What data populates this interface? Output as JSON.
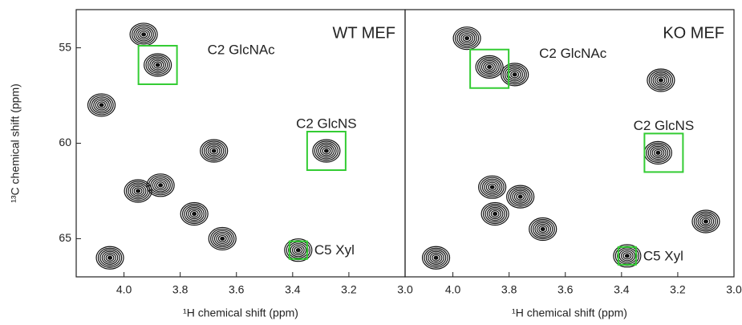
{
  "chart_data": [
    {
      "type": "contour",
      "title": "WT MEF",
      "xlabel": "¹H chemical shift (ppm)",
      "ylabel": "¹³C chemical shift (ppm)",
      "xlim": [
        4.17,
        3.0
      ],
      "ylim": [
        67,
        53
      ],
      "xticks": [
        {
          "value": 4.0,
          "label": "4.0"
        },
        3.8,
        3.6,
        3.4,
        3.2,
        {
          "value": 3.0,
          "label": "3.0"
        }
      ],
      "yticks": [
        55,
        60,
        65
      ],
      "peaks": {
        "x": [
          3.93,
          3.88,
          4.08,
          3.28,
          3.87,
          3.95,
          3.75,
          4.05,
          3.38,
          3.65,
          3.68
        ],
        "y": [
          54.3,
          55.9,
          58.0,
          60.4,
          62.2,
          62.5,
          63.7,
          66.0,
          65.6,
          65.0,
          60.4
        ]
      },
      "annotations": [
        {
          "text": "C2 GlcNAc",
          "x": 3.88,
          "y": 55.9
        },
        {
          "text": "C2 GlcNS",
          "x": 3.28,
          "y": 60.4
        },
        {
          "text": "C5 Xyl",
          "x": 3.38,
          "y": 65.6
        }
      ],
      "box_color": "#33cc33"
    },
    {
      "type": "contour",
      "title": "KO MEF",
      "xlabel": "¹H chemical shift (ppm)",
      "xlim": [
        4.17,
        3.0
      ],
      "ylim": [
        67,
        53
      ],
      "xticks": [
        {
          "value": 4.0,
          "label": "4.0"
        },
        3.8,
        3.6,
        3.4,
        3.2,
        {
          "value": 3.0,
          "label": "3.0"
        }
      ],
      "peaks": {
        "x": [
          3.95,
          3.87,
          3.78,
          3.27,
          3.86,
          3.76,
          3.85,
          3.1,
          4.06,
          3.38,
          3.68,
          3.26
        ],
        "y": [
          54.5,
          56.0,
          56.4,
          60.5,
          62.3,
          62.8,
          63.7,
          64.1,
          66.0,
          65.9,
          64.5,
          56.7
        ]
      },
      "annotations": [
        {
          "text": "C2 GlcNAc",
          "x": 3.87,
          "y": 56.1
        },
        {
          "text": "C2 GlcNS",
          "x": 3.25,
          "y": 60.5
        },
        {
          "text": "C5 Xyl",
          "x": 3.38,
          "y": 65.9
        }
      ],
      "box_color": "#33cc33"
    }
  ]
}
